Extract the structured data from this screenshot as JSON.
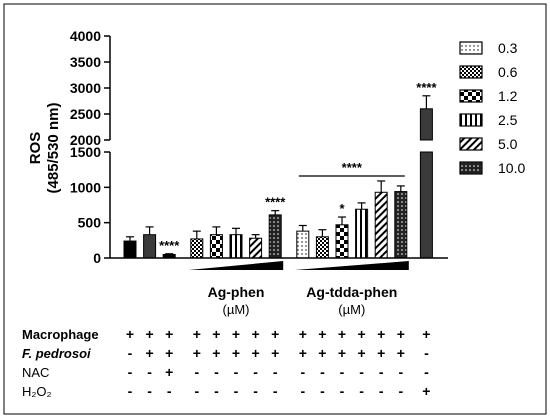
{
  "chart_data": {
    "type": "bar",
    "ylabel_line1": "ROS",
    "ylabel_line2": "(485/530 nm)",
    "axis_lower": {
      "ylim": [
        0,
        1500
      ],
      "ticks": [
        "0",
        "500",
        "1000",
        "1500"
      ]
    },
    "axis_upper": {
      "ylim": [
        2000,
        4000
      ],
      "ticks": [
        "2000",
        "2500",
        "3000",
        "3500",
        "4000"
      ]
    },
    "legend_position": "top-right",
    "legend": [
      {
        "label": "0.3",
        "pattern": "dots"
      },
      {
        "label": "0.6",
        "pattern": "checker-small"
      },
      {
        "label": "1.2",
        "pattern": "checker-large"
      },
      {
        "label": "2.5",
        "pattern": "vertical-stripes"
      },
      {
        "label": "5.0",
        "pattern": "diagonal"
      },
      {
        "label": "10.0",
        "pattern": "dense-dots"
      }
    ],
    "bars": [
      {
        "value": 240,
        "error": 60,
        "pattern": "solid-black",
        "sig": ""
      },
      {
        "value": 330,
        "error": 110,
        "pattern": "solid-dark",
        "sig": ""
      },
      {
        "value": 50,
        "error": 10,
        "pattern": "solid-black",
        "sig": "****"
      },
      {
        "value": 270,
        "error": 110,
        "pattern": "checker-small",
        "sig": ""
      },
      {
        "value": 330,
        "error": 110,
        "pattern": "checker-large",
        "sig": ""
      },
      {
        "value": 330,
        "error": 90,
        "pattern": "vertical-stripes",
        "sig": ""
      },
      {
        "value": 280,
        "error": 50,
        "pattern": "diagonal",
        "sig": ""
      },
      {
        "value": 610,
        "error": 60,
        "pattern": "dense-dots",
        "sig": "****"
      },
      {
        "value": 380,
        "error": 80,
        "pattern": "dots",
        "sig": ""
      },
      {
        "value": 300,
        "error": 100,
        "pattern": "checker-small",
        "sig": ""
      },
      {
        "value": 470,
        "error": 110,
        "pattern": "checker-large",
        "sig": "*"
      },
      {
        "value": 690,
        "error": 90,
        "pattern": "vertical-stripes",
        "sig": ""
      },
      {
        "value": 930,
        "error": 160,
        "pattern": "diagonal",
        "sig": ""
      },
      {
        "value": 940,
        "error": 80,
        "pattern": "dense-dots",
        "sig": ""
      },
      {
        "value": 2600,
        "error": 250,
        "pattern": "solid-dark",
        "sig": "****"
      }
    ],
    "groups": [
      {
        "title": "Ag-phen",
        "unit": "(µM)",
        "first_bar": 3,
        "last_bar": 7
      },
      {
        "title": "Ag-tdda-phen",
        "unit": "(µM)",
        "first_bar": 8,
        "last_bar": 13
      }
    ],
    "group_bracket_sig": "****",
    "conditions": [
      {
        "label": "Macrophage",
        "italic": false,
        "values": [
          "+",
          "+",
          "+",
          "+",
          "+",
          "+",
          "+",
          "+",
          "+",
          "+",
          "+",
          "+",
          "+",
          "+",
          "+"
        ]
      },
      {
        "label": "F. pedrosoi",
        "italic": true,
        "values": [
          "-",
          "+",
          "+",
          "+",
          "+",
          "+",
          "+",
          "+",
          "+",
          "+",
          "+",
          "+",
          "+",
          "+",
          "-"
        ]
      },
      {
        "label": "NAC",
        "italic": false,
        "values": [
          "-",
          "-",
          "+",
          "-",
          "-",
          "-",
          "-",
          "-",
          "-",
          "-",
          "-",
          "-",
          "-",
          "-",
          "-"
        ]
      },
      {
        "label": "H₂O₂",
        "italic": false,
        "values": [
          "-",
          "-",
          "-",
          "-",
          "-",
          "-",
          "-",
          "-",
          "-",
          "-",
          "-",
          "-",
          "-",
          "-",
          "+"
        ]
      }
    ]
  }
}
